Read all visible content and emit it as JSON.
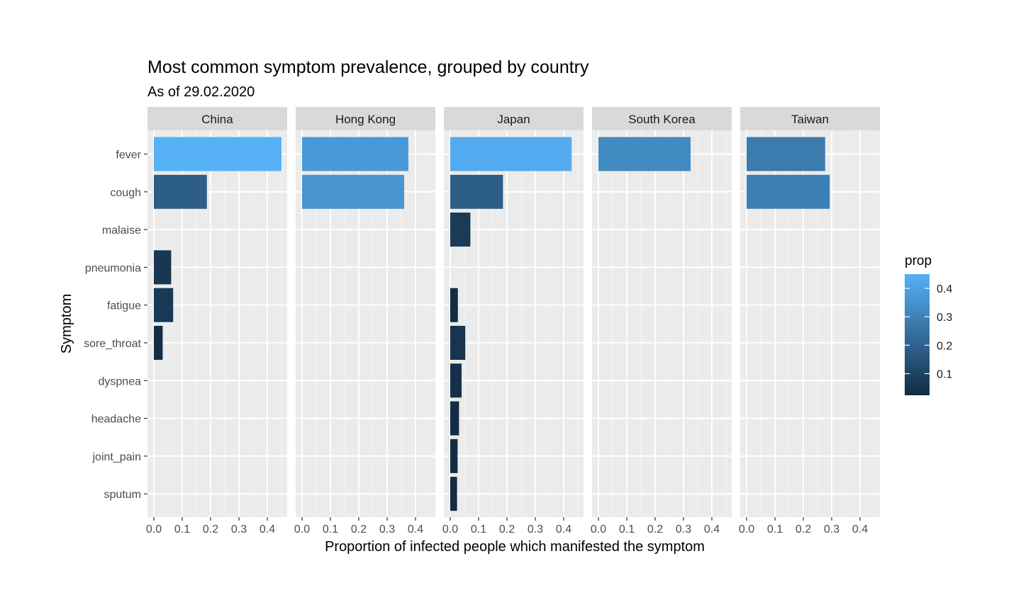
{
  "chart_data": {
    "type": "bar",
    "orientation": "horizontal",
    "title": "Most common symptom prevalence, grouped by country",
    "subtitle": "As of 29.02.2020",
    "xlabel": "Proportion of infected people which manifested the symptom",
    "ylabel": "Symptom",
    "xlim": [
      0,
      0.475
    ],
    "x_ticks": [
      "0.0",
      "0.1",
      "0.2",
      "0.3",
      "0.4"
    ],
    "categories": [
      "fever",
      "cough",
      "malaise",
      "pneumonia",
      "fatigue",
      "sore_throat",
      "dyspnea",
      "headache",
      "joint_pain",
      "sputum"
    ],
    "facets": [
      {
        "name": "China",
        "values": {
          "fever": 0.45,
          "cough": 0.187,
          "pneumonia": 0.061,
          "fatigue": 0.068,
          "sore_throat": 0.031
        }
      },
      {
        "name": "Hong Kong",
        "values": {
          "fever": 0.375,
          "cough": 0.36
        }
      },
      {
        "name": "Japan",
        "values": {
          "fever": 0.428,
          "cough": 0.186,
          "malaise": 0.071,
          "fatigue": 0.027,
          "sore_throat": 0.053,
          "dyspnea": 0.04,
          "headache": 0.031,
          "joint_pain": 0.026,
          "sputum": 0.024
        }
      },
      {
        "name": "South Korea",
        "values": {
          "fever": 0.325
        }
      },
      {
        "name": "Taiwan",
        "values": {
          "fever": 0.277,
          "cough": 0.293
        }
      }
    ],
    "legend": {
      "title": "prop",
      "position": "right",
      "labels": [
        "0.4",
        "0.3",
        "0.2",
        "0.1"
      ],
      "label_values": [
        0.4,
        0.3,
        0.2,
        0.1
      ],
      "range": [
        0.024,
        0.45
      ],
      "color_low": "#132B43",
      "color_high": "#56B1F7"
    },
    "grid": true,
    "panel_background": "#EBEBEB",
    "strip_background": "#D9D9D9"
  }
}
